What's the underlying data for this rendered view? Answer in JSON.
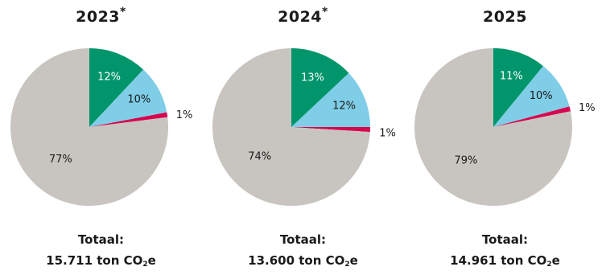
{
  "colors": {
    "green": "#00956a",
    "lightblue": "#7fcde6",
    "magenta": "#d7044f",
    "grey": "#c8c5c0"
  },
  "chart_data": [
    {
      "type": "pie",
      "title": "2023",
      "title_mark": "*",
      "slices": [
        {
          "label": "12%",
          "value": 12,
          "color": "#00956a"
        },
        {
          "label": "10%",
          "value": 10,
          "color": "#7fcde6"
        },
        {
          "label": "1%",
          "value": 1,
          "color": "#d7044f"
        },
        {
          "label": "77%",
          "value": 77,
          "color": "#c8c5c0"
        }
      ],
      "total_label": "Totaal:",
      "total_value": "15.711 ton CO",
      "total_sub": "2",
      "total_unit": "e"
    },
    {
      "type": "pie",
      "title": "2024",
      "title_mark": "*",
      "slices": [
        {
          "label": "13%",
          "value": 13,
          "color": "#00956a"
        },
        {
          "label": "12%",
          "value": 12,
          "color": "#7fcde6"
        },
        {
          "label": "1%",
          "value": 1,
          "color": "#d7044f"
        },
        {
          "label": "74%",
          "value": 74,
          "color": "#c8c5c0"
        }
      ],
      "total_label": "Totaal:",
      "total_value": "13.600 ton CO",
      "total_sub": "2",
      "total_unit": "e"
    },
    {
      "type": "pie",
      "title": "2025",
      "title_mark": "",
      "slices": [
        {
          "label": "11%",
          "value": 11,
          "color": "#00956a"
        },
        {
          "label": "10%",
          "value": 10,
          "color": "#7fcde6"
        },
        {
          "label": "1%",
          "value": 1,
          "color": "#d7044f"
        },
        {
          "label": "79%",
          "value": 79,
          "color": "#c8c5c0"
        }
      ],
      "total_label": "Totaal:",
      "total_value": "14.961 ton CO",
      "total_sub": "2",
      "total_unit": "e"
    }
  ]
}
